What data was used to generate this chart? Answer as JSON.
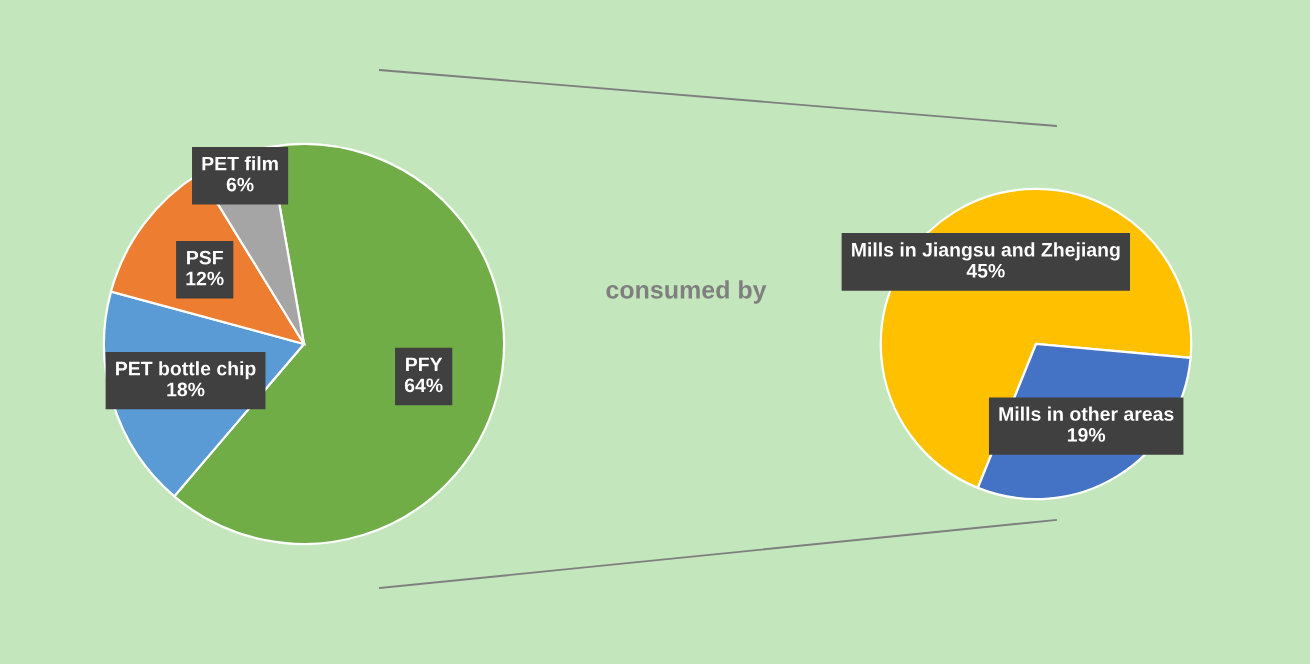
{
  "chart_data": [
    {
      "type": "pie",
      "categories": [
        "PFY",
        "PET bottle chip",
        "PSF",
        "PET film"
      ],
      "values": [
        64,
        18,
        12,
        6
      ],
      "colors": [
        "#70ad47",
        "#5b9bd5",
        "#ed7d31",
        "#a5a5a5"
      ],
      "value_labels": [
        "64%",
        "18%",
        "12%",
        "6%"
      ],
      "annotations": [
        "consumed by"
      ]
    },
    {
      "type": "pie",
      "categories": [
        "Mills in Jiangsu and Zhejiang",
        "Mills in other areas"
      ],
      "values": [
        45,
        19
      ],
      "colors": [
        "#ffc000",
        "#4472c4"
      ],
      "value_labels": [
        "45%",
        "19%"
      ]
    }
  ]
}
